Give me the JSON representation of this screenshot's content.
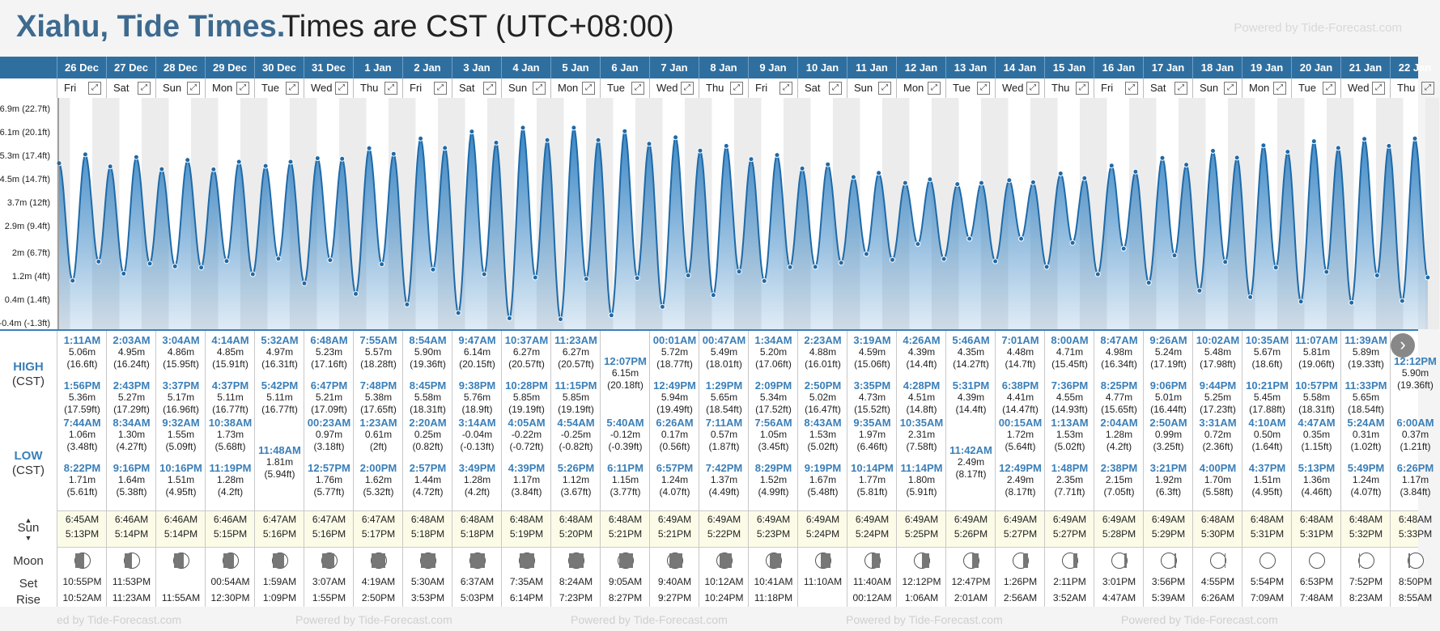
{
  "header": {
    "place": "Xiahu, Tide Times.",
    "timezone": "Times are CST (UTC+08:00)",
    "powered": "Powered by Tide-Forecast.com"
  },
  "colors": {
    "band": "#2f6fa0",
    "tide": "#2f80c2",
    "accent": "#3a7fb9"
  },
  "axis": {
    "labels": [
      "6.9m (22.7ft)",
      "6.1m (20.1ft)",
      "5.3m (17.4ft)",
      "4.5m (14.7ft)",
      "3.7m (12ft)",
      "2.9m (9.4ft)",
      "2m (6.7ft)",
      "1.2m (4ft)",
      "0.4m (1.4ft)",
      "-0.4m (-1.3ft)"
    ],
    "values": [
      6.9,
      6.1,
      5.3,
      4.5,
      3.7,
      2.9,
      2.0,
      1.2,
      0.4,
      -0.4
    ]
  },
  "row_labels": {
    "high": "HIGH",
    "high_tz": "(CST)",
    "low": "LOW",
    "low_tz": "(CST)",
    "sun": "Sun",
    "moon": "Moon",
    "set": "Set",
    "rise": "Rise"
  },
  "footer": {
    "text1": "ed by Tide-Forecast.com",
    "text2": "Powered by Tide-Forecast.com",
    "text3": "Powered by Tide-Forecast.com",
    "text4": "Powered by Tide-Forecast.com",
    "text5": "Powered by Tide-Forecast.com"
  },
  "days": [
    {
      "date": "26 Dec",
      "day": "Fri",
      "hi1": {
        "t": "1:11AM",
        "m": "5.06m",
        "f": "(16.6ft)"
      },
      "hi2": {
        "t": "1:56PM",
        "m": "5.36m",
        "f": "(17.59ft)"
      },
      "lo1": {
        "t": "7:44AM",
        "m": "1.06m",
        "f": "(3.48ft)"
      },
      "lo2": {
        "t": "8:22PM",
        "m": "1.71m",
        "f": "(5.61ft)"
      },
      "sunrise": "6:45AM",
      "sunset": "5:13PM",
      "moonset": "10:55PM",
      "moonrise": "10:52AM",
      "moon": 0.4,
      "moonside": "left"
    },
    {
      "date": "27 Dec",
      "day": "Sat",
      "hi1": {
        "t": "2:03AM",
        "m": "4.95m",
        "f": "(16.24ft)"
      },
      "hi2": {
        "t": "2:43PM",
        "m": "5.27m",
        "f": "(17.29ft)"
      },
      "lo1": {
        "t": "8:34AM",
        "m": "1.30m",
        "f": "(4.27ft)"
      },
      "lo2": {
        "t": "9:16PM",
        "m": "1.64m",
        "f": "(5.38ft)"
      },
      "sunrise": "6:46AM",
      "sunset": "5:14PM",
      "moonset": "11:53PM",
      "moonrise": "11:23AM",
      "moon": 0.5,
      "moonside": "left"
    },
    {
      "date": "28 Dec",
      "day": "Sun",
      "hi1": {
        "t": "3:04AM",
        "m": "4.86m",
        "f": "(15.95ft)"
      },
      "hi2": {
        "t": "3:37PM",
        "m": "5.17m",
        "f": "(16.96ft)"
      },
      "lo1": {
        "t": "9:32AM",
        "m": "1.55m",
        "f": "(5.09ft)"
      },
      "lo2": {
        "t": "10:16PM",
        "m": "1.51m",
        "f": "(4.95ft)"
      },
      "sunrise": "6:46AM",
      "sunset": "5:14PM",
      "moonset": "",
      "moonrise": "11:55AM",
      "moon": 0.35,
      "moonside": "left"
    },
    {
      "date": "29 Dec",
      "day": "Mon",
      "hi1": {
        "t": "4:14AM",
        "m": "4.85m",
        "f": "(15.91ft)"
      },
      "hi2": {
        "t": "4:37PM",
        "m": "5.11m",
        "f": "(16.77ft)"
      },
      "lo1": {
        "t": "10:38AM",
        "m": "1.73m",
        "f": "(5.68ft)"
      },
      "lo2": {
        "t": "11:19PM",
        "m": "1.28m",
        "f": "(4.2ft)"
      },
      "sunrise": "6:46AM",
      "sunset": "5:15PM",
      "moonset": "00:54AM",
      "moonrise": "12:30PM",
      "moon": 0.3,
      "moonside": "left"
    },
    {
      "date": "30 Dec",
      "day": "Tue",
      "hi1": {
        "t": "5:32AM",
        "m": "4.97m",
        "f": "(16.31ft)"
      },
      "hi2": {
        "t": "5:42PM",
        "m": "5.11m",
        "f": "(16.77ft)"
      },
      "lo1": {
        "t": "11:48AM",
        "m": "1.81m",
        "f": "(5.94ft)"
      },
      "lo2": null,
      "sunrise": "6:47AM",
      "sunset": "5:16PM",
      "moonset": "1:59AM",
      "moonrise": "1:09PM",
      "moon": 0.22,
      "moonside": "left"
    },
    {
      "date": "31 Dec",
      "day": "Wed",
      "hi1": {
        "t": "6:48AM",
        "m": "5.23m",
        "f": "(17.16ft)"
      },
      "hi2": {
        "t": "6:47PM",
        "m": "5.21m",
        "f": "(17.09ft)"
      },
      "lo1": {
        "t": "00:23AM",
        "m": "0.97m",
        "f": "(3.18ft)"
      },
      "lo2": {
        "t": "12:57PM",
        "m": "1.76m",
        "f": "(5.77ft)"
      },
      "sunrise": "6:47AM",
      "sunset": "5:16PM",
      "moonset": "3:07AM",
      "moonrise": "1:55PM",
      "moon": 0.15,
      "moonside": "left"
    },
    {
      "date": "1 Jan",
      "day": "Thu",
      "hi1": {
        "t": "7:55AM",
        "m": "5.57m",
        "f": "(18.28ft)"
      },
      "hi2": {
        "t": "7:48PM",
        "m": "5.38m",
        "f": "(17.65ft)"
      },
      "lo1": {
        "t": "1:23AM",
        "m": "0.61m",
        "f": "(2ft)"
      },
      "lo2": {
        "t": "2:00PM",
        "m": "1.62m",
        "f": "(5.32ft)"
      },
      "sunrise": "6:47AM",
      "sunset": "5:17PM",
      "moonset": "4:19AM",
      "moonrise": "2:50PM",
      "moon": 0.08,
      "moonside": "left"
    },
    {
      "date": "2 Jan",
      "day": "Fri",
      "hi1": {
        "t": "8:54AM",
        "m": "5.90m",
        "f": "(19.36ft)"
      },
      "hi2": {
        "t": "8:45PM",
        "m": "5.58m",
        "f": "(18.31ft)"
      },
      "lo1": {
        "t": "2:20AM",
        "m": "0.25m",
        "f": "(0.82ft)"
      },
      "lo2": {
        "t": "2:57PM",
        "m": "1.44m",
        "f": "(4.72ft)"
      },
      "sunrise": "6:48AM",
      "sunset": "5:18PM",
      "moonset": "5:30AM",
      "moonrise": "3:53PM",
      "moon": 0.0,
      "moonside": "left"
    },
    {
      "date": "3 Jan",
      "day": "Sat",
      "hi1": {
        "t": "9:47AM",
        "m": "6.14m",
        "f": "(20.15ft)"
      },
      "hi2": {
        "t": "9:38PM",
        "m": "5.76m",
        "f": "(18.9ft)"
      },
      "lo1": {
        "t": "3:14AM",
        "m": "-0.04m",
        "f": "(-0.13ft)"
      },
      "lo2": {
        "t": "3:49PM",
        "m": "1.28m",
        "f": "(4.2ft)"
      },
      "sunrise": "6:48AM",
      "sunset": "5:18PM",
      "moonset": "6:37AM",
      "moonrise": "5:03PM",
      "moon": 0.0,
      "moonside": "left"
    },
    {
      "date": "4 Jan",
      "day": "Sun",
      "hi1": {
        "t": "10:37AM",
        "m": "6.27m",
        "f": "(20.57ft)"
      },
      "hi2": {
        "t": "10:28PM",
        "m": "5.85m",
        "f": "(19.19ft)"
      },
      "lo1": {
        "t": "4:05AM",
        "m": "-0.22m",
        "f": "(-0.72ft)"
      },
      "lo2": {
        "t": "4:39PM",
        "m": "1.17m",
        "f": "(3.84ft)"
      },
      "sunrise": "6:48AM",
      "sunset": "5:19PM",
      "moonset": "7:35AM",
      "moonrise": "6:14PM",
      "moon": 0.0,
      "moonside": "left"
    },
    {
      "date": "5 Jan",
      "day": "Mon",
      "hi1": {
        "t": "11:23AM",
        "m": "6.27m",
        "f": "(20.57ft)"
      },
      "hi2": {
        "t": "11:15PM",
        "m": "5.85m",
        "f": "(19.19ft)"
      },
      "lo1": {
        "t": "4:54AM",
        "m": "-0.25m",
        "f": "(-0.82ft)"
      },
      "lo2": {
        "t": "5:26PM",
        "m": "1.12m",
        "f": "(3.67ft)"
      },
      "sunrise": "6:48AM",
      "sunset": "5:20PM",
      "moonset": "8:24AM",
      "moonrise": "7:23PM",
      "moon": 0.0,
      "moonside": "right"
    },
    {
      "date": "6 Jan",
      "day": "Tue",
      "hi1": {
        "t": "12:07PM",
        "m": "6.15m",
        "f": "(20.18ft)"
      },
      "hi2": null,
      "lo1": {
        "t": "5:40AM",
        "m": "-0.12m",
        "f": "(-0.39ft)"
      },
      "lo2": {
        "t": "6:11PM",
        "m": "1.15m",
        "f": "(3.77ft)"
      },
      "sunrise": "6:48AM",
      "sunset": "5:21PM",
      "moonset": "9:05AM",
      "moonrise": "8:27PM",
      "moon": 0.05,
      "moonside": "right"
    },
    {
      "date": "7 Jan",
      "day": "Wed",
      "hi1": {
        "t": "00:01AM",
        "m": "5.72m",
        "f": "(18.77ft)"
      },
      "hi2": {
        "t": "12:49PM",
        "m": "5.94m",
        "f": "(19.49ft)"
      },
      "lo1": {
        "t": "6:26AM",
        "m": "0.17m",
        "f": "(0.56ft)"
      },
      "lo2": {
        "t": "6:57PM",
        "m": "1.24m",
        "f": "(4.07ft)"
      },
      "sunrise": "6:49AM",
      "sunset": "5:21PM",
      "moonset": "9:40AM",
      "moonrise": "9:27PM",
      "moon": 0.1,
      "moonside": "right"
    },
    {
      "date": "8 Jan",
      "day": "Thu",
      "hi1": {
        "t": "00:47AM",
        "m": "5.49m",
        "f": "(18.01ft)"
      },
      "hi2": {
        "t": "1:29PM",
        "m": "5.65m",
        "f": "(18.54ft)"
      },
      "lo1": {
        "t": "7:11AM",
        "m": "0.57m",
        "f": "(1.87ft)"
      },
      "lo2": {
        "t": "7:42PM",
        "m": "1.37m",
        "f": "(4.49ft)"
      },
      "sunrise": "6:49AM",
      "sunset": "5:22PM",
      "moonset": "10:12AM",
      "moonrise": "10:24PM",
      "moon": 0.18,
      "moonside": "right"
    },
    {
      "date": "9 Jan",
      "day": "Fri",
      "hi1": {
        "t": "1:34AM",
        "m": "5.20m",
        "f": "(17.06ft)"
      },
      "hi2": {
        "t": "2:09PM",
        "m": "5.34m",
        "f": "(17.52ft)"
      },
      "lo1": {
        "t": "7:56AM",
        "m": "1.05m",
        "f": "(3.45ft)"
      },
      "lo2": {
        "t": "8:29PM",
        "m": "1.52m",
        "f": "(4.99ft)"
      },
      "sunrise": "6:49AM",
      "sunset": "5:23PM",
      "moonset": "10:41AM",
      "moonrise": "11:18PM",
      "moon": 0.25,
      "moonside": "right"
    },
    {
      "date": "10 Jan",
      "day": "Sat",
      "hi1": {
        "t": "2:23AM",
        "m": "4.88m",
        "f": "(16.01ft)"
      },
      "hi2": {
        "t": "2:50PM",
        "m": "5.02m",
        "f": "(16.47ft)"
      },
      "lo1": {
        "t": "8:43AM",
        "m": "1.53m",
        "f": "(5.02ft)"
      },
      "lo2": {
        "t": "9:19PM",
        "m": "1.67m",
        "f": "(5.48ft)"
      },
      "sunrise": "6:49AM",
      "sunset": "5:24PM",
      "moonset": "11:10AM",
      "moonrise": "",
      "moon": 0.35,
      "moonside": "right"
    },
    {
      "date": "11 Jan",
      "day": "Sun",
      "hi1": {
        "t": "3:19AM",
        "m": "4.59m",
        "f": "(15.06ft)"
      },
      "hi2": {
        "t": "3:35PM",
        "m": "4.73m",
        "f": "(15.52ft)"
      },
      "lo1": {
        "t": "9:35AM",
        "m": "1.97m",
        "f": "(6.46ft)"
      },
      "lo2": {
        "t": "10:14PM",
        "m": "1.77m",
        "f": "(5.81ft)"
      },
      "sunrise": "6:49AM",
      "sunset": "5:24PM",
      "moonset": "11:40AM",
      "moonrise": "00:12AM",
      "moon": 0.45,
      "moonside": "right"
    },
    {
      "date": "12 Jan",
      "day": "Mon",
      "hi1": {
        "t": "4:26AM",
        "m": "4.39m",
        "f": "(14.4ft)"
      },
      "hi2": {
        "t": "4:28PM",
        "m": "4.51m",
        "f": "(14.8ft)"
      },
      "lo1": {
        "t": "10:35AM",
        "m": "2.31m",
        "f": "(7.58ft)"
      },
      "lo2": {
        "t": "11:14PM",
        "m": "1.80m",
        "f": "(5.91ft)"
      },
      "sunrise": "6:49AM",
      "sunset": "5:25PM",
      "moonset": "12:12PM",
      "moonrise": "1:06AM",
      "moon": 0.5,
      "moonside": "right"
    },
    {
      "date": "13 Jan",
      "day": "Tue",
      "hi1": {
        "t": "5:46AM",
        "m": "4.35m",
        "f": "(14.27ft)"
      },
      "hi2": {
        "t": "5:31PM",
        "m": "4.39m",
        "f": "(14.4ft)"
      },
      "lo1": {
        "t": "11:42AM",
        "m": "2.49m",
        "f": "(8.17ft)"
      },
      "lo2": null,
      "sunrise": "6:49AM",
      "sunset": "5:26PM",
      "moonset": "12:47PM",
      "moonrise": "2:01AM",
      "moon": 0.58,
      "moonside": "right"
    },
    {
      "date": "14 Jan",
      "day": "Wed",
      "hi1": {
        "t": "7:01AM",
        "m": "4.48m",
        "f": "(14.7ft)"
      },
      "hi2": {
        "t": "6:38PM",
        "m": "4.41m",
        "f": "(14.47ft)"
      },
      "lo1": {
        "t": "00:15AM",
        "m": "1.72m",
        "f": "(5.64ft)"
      },
      "lo2": {
        "t": "12:49PM",
        "m": "2.49m",
        "f": "(8.17ft)"
      },
      "sunrise": "6:49AM",
      "sunset": "5:27PM",
      "moonset": "1:26PM",
      "moonrise": "2:56AM",
      "moon": 0.66,
      "moonside": "right"
    },
    {
      "date": "15 Jan",
      "day": "Thu",
      "hi1": {
        "t": "8:00AM",
        "m": "4.71m",
        "f": "(15.45ft)"
      },
      "hi2": {
        "t": "7:36PM",
        "m": "4.55m",
        "f": "(14.93ft)"
      },
      "lo1": {
        "t": "1:13AM",
        "m": "1.53m",
        "f": "(5.02ft)"
      },
      "lo2": {
        "t": "1:48PM",
        "m": "2.35m",
        "f": "(7.71ft)"
      },
      "sunrise": "6:49AM",
      "sunset": "5:27PM",
      "moonset": "2:11PM",
      "moonrise": "3:52AM",
      "moon": 0.74,
      "moonside": "right"
    },
    {
      "date": "16 Jan",
      "day": "Fri",
      "hi1": {
        "t": "8:47AM",
        "m": "4.98m",
        "f": "(16.34ft)"
      },
      "hi2": {
        "t": "8:25PM",
        "m": "4.77m",
        "f": "(15.65ft)"
      },
      "lo1": {
        "t": "2:04AM",
        "m": "1.28m",
        "f": "(4.2ft)"
      },
      "lo2": {
        "t": "2:38PM",
        "m": "2.15m",
        "f": "(7.05ft)"
      },
      "sunrise": "6:49AM",
      "sunset": "5:28PM",
      "moonset": "3:01PM",
      "moonrise": "4:47AM",
      "moon": 0.82,
      "moonside": "right"
    },
    {
      "date": "17 Jan",
      "day": "Sat",
      "hi1": {
        "t": "9:26AM",
        "m": "5.24m",
        "f": "(17.19ft)"
      },
      "hi2": {
        "t": "9:06PM",
        "m": "5.01m",
        "f": "(16.44ft)"
      },
      "lo1": {
        "t": "2:50AM",
        "m": "0.99m",
        "f": "(3.25ft)"
      },
      "lo2": {
        "t": "3:21PM",
        "m": "1.92m",
        "f": "(6.3ft)"
      },
      "sunrise": "6:49AM",
      "sunset": "5:29PM",
      "moonset": "3:56PM",
      "moonrise": "5:39AM",
      "moon": 0.9,
      "moonside": "right"
    },
    {
      "date": "18 Jan",
      "day": "Sun",
      "hi1": {
        "t": "10:02AM",
        "m": "5.48m",
        "f": "(17.98ft)"
      },
      "hi2": {
        "t": "9:44PM",
        "m": "5.25m",
        "f": "(17.23ft)"
      },
      "lo1": {
        "t": "3:31AM",
        "m": "0.72m",
        "f": "(2.36ft)"
      },
      "lo2": {
        "t": "4:00PM",
        "m": "1.70m",
        "f": "(5.58ft)"
      },
      "sunrise": "6:48AM",
      "sunset": "5:30PM",
      "moonset": "4:55PM",
      "moonrise": "6:26AM",
      "moon": 0.95,
      "moonside": "right"
    },
    {
      "date": "19 Jan",
      "day": "Mon",
      "hi1": {
        "t": "10:35AM",
        "m": "5.67m",
        "f": "(18.6ft)"
      },
      "hi2": {
        "t": "10:21PM",
        "m": "5.45m",
        "f": "(17.88ft)"
      },
      "lo1": {
        "t": "4:10AM",
        "m": "0.50m",
        "f": "(1.64ft)"
      },
      "lo2": {
        "t": "4:37PM",
        "m": "1.51m",
        "f": "(4.95ft)"
      },
      "sunrise": "6:48AM",
      "sunset": "5:31PM",
      "moonset": "5:54PM",
      "moonrise": "7:09AM",
      "moon": 1.0,
      "moonside": "right"
    },
    {
      "date": "20 Jan",
      "day": "Tue",
      "hi1": {
        "t": "11:07AM",
        "m": "5.81m",
        "f": "(19.06ft)"
      },
      "hi2": {
        "t": "10:57PM",
        "m": "5.58m",
        "f": "(18.31ft)"
      },
      "lo1": {
        "t": "4:47AM",
        "m": "0.35m",
        "f": "(1.15ft)"
      },
      "lo2": {
        "t": "5:13PM",
        "m": "1.36m",
        "f": "(4.46ft)"
      },
      "sunrise": "6:48AM",
      "sunset": "5:31PM",
      "moonset": "6:53PM",
      "moonrise": "7:48AM",
      "moon": 1.0,
      "moonside": "right"
    },
    {
      "date": "21 Jan",
      "day": "Wed",
      "hi1": {
        "t": "11:39AM",
        "m": "5.89m",
        "f": "(19.33ft)"
      },
      "hi2": {
        "t": "11:33PM",
        "m": "5.65m",
        "f": "(18.54ft)"
      },
      "lo1": {
        "t": "5:24AM",
        "m": "0.31m",
        "f": "(1.02ft)"
      },
      "lo2": {
        "t": "5:49PM",
        "m": "1.24m",
        "f": "(4.07ft)"
      },
      "sunrise": "6:48AM",
      "sunset": "5:32PM",
      "moonset": "7:52PM",
      "moonrise": "8:23AM",
      "moon": 0.95,
      "moonside": "left"
    },
    {
      "date": "22 Jan",
      "day": "Thu",
      "hi1": {
        "t": "12:12PM",
        "m": "5.90m",
        "f": "(19.36ft)"
      },
      "hi2": null,
      "lo1": {
        "t": "6:00AM",
        "m": "0.37m",
        "f": "(1.21ft)"
      },
      "lo2": {
        "t": "6:26PM",
        "m": "1.17m",
        "f": "(3.84ft)"
      },
      "sunrise": "6:48AM",
      "sunset": "5:33PM",
      "moonset": "8:50PM",
      "moonrise": "8:55AM",
      "moon": 0.9,
      "moonside": "left"
    }
  ]
}
